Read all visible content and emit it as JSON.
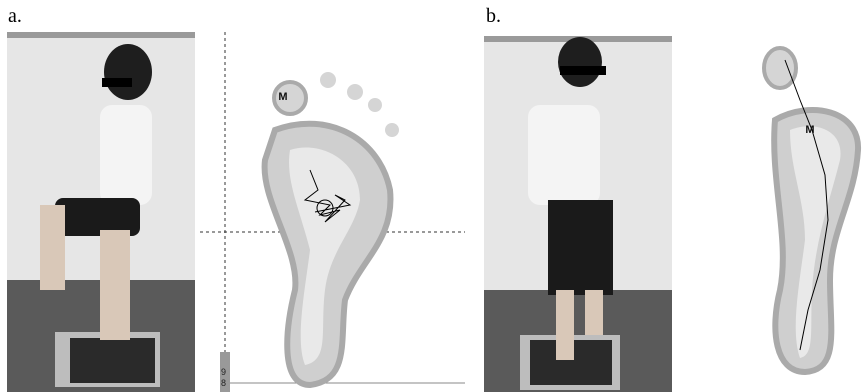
{
  "panels": [
    {
      "label": "a.",
      "footprint_marker": "M",
      "axis_digits": [
        "9",
        "8"
      ]
    },
    {
      "label": "b.",
      "footprint_marker": "M"
    }
  ]
}
